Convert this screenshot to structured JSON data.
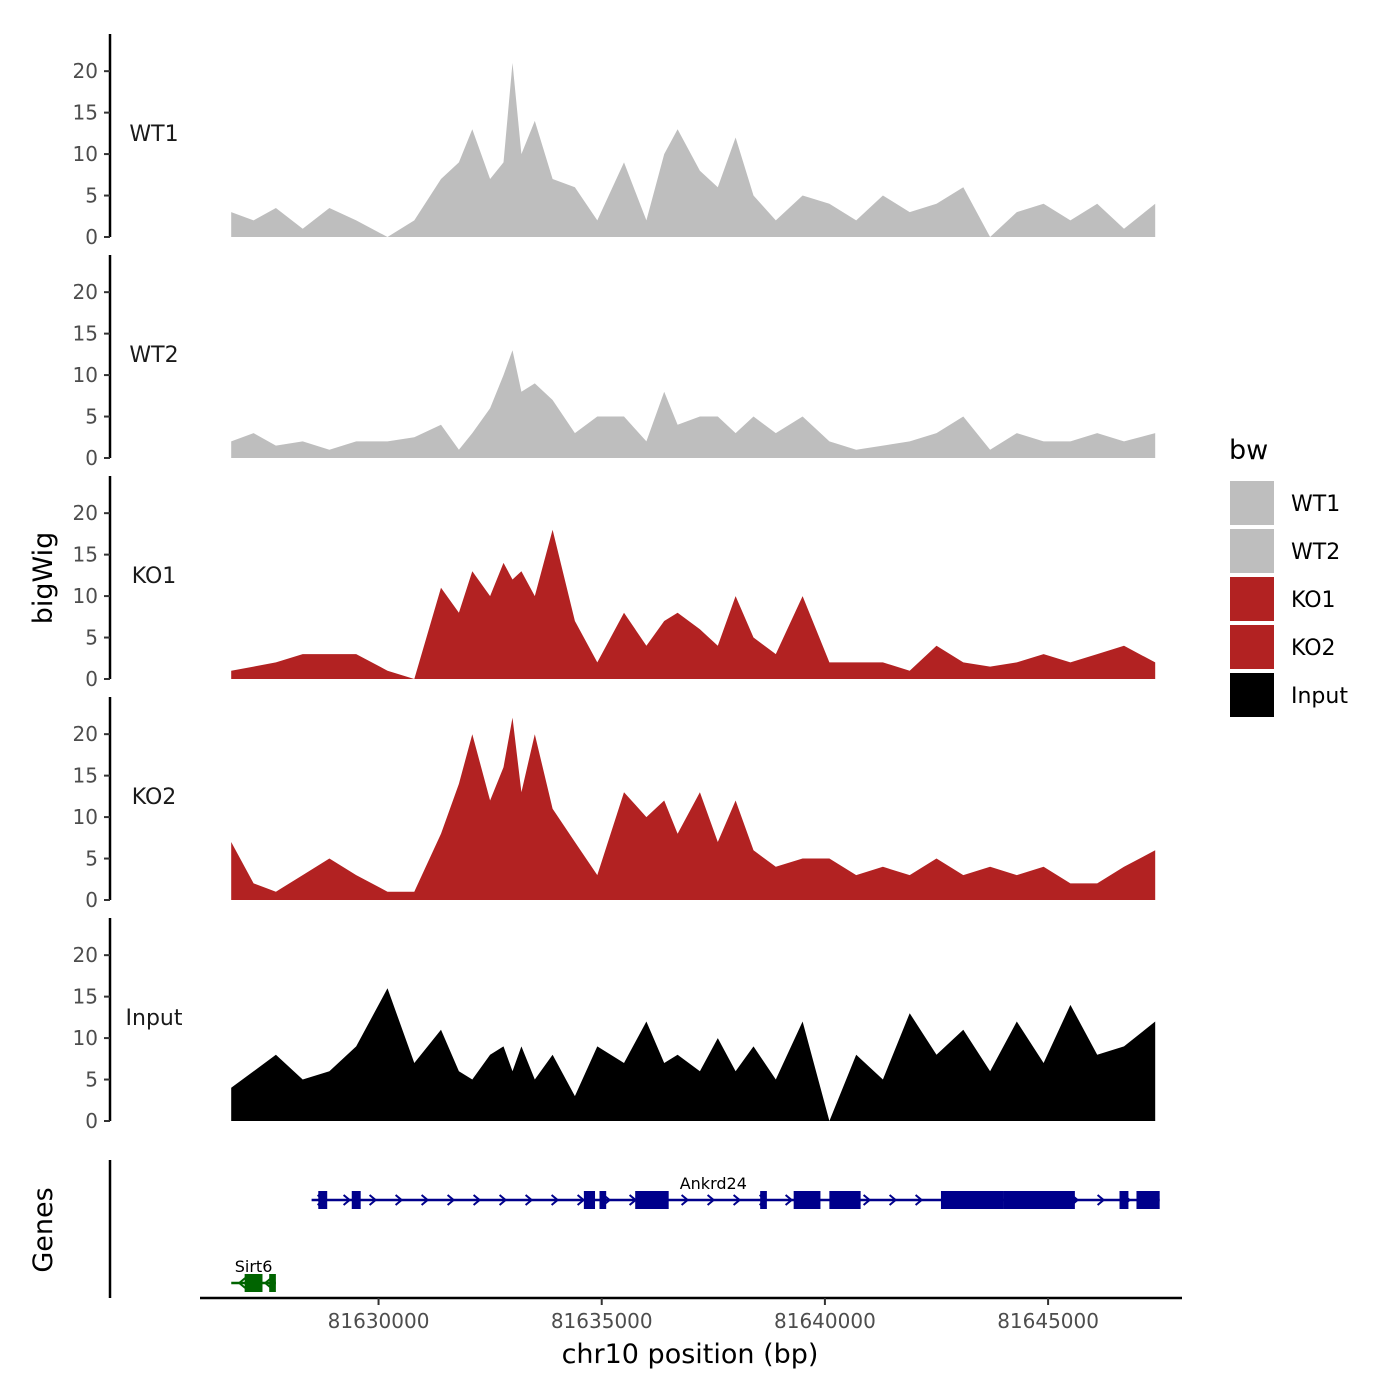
{
  "chart_data": {
    "type": "area",
    "title": "",
    "ylabel": "bigWig",
    "xlabel": "chr10 position (bp)",
    "genes_label": "Genes",
    "ylim": [
      0,
      24
    ],
    "yticks": [
      0,
      5,
      10,
      15,
      20
    ],
    "xlim": [
      81626000,
      81648000
    ],
    "xticks": [
      81630000,
      81635000,
      81640000,
      81645000
    ],
    "xtick_labels": [
      "81630000",
      "81635000",
      "81640000",
      "81645000"
    ],
    "tracks": [
      {
        "name": "WT1",
        "color": "#bebebe",
        "x": [
          81626700,
          81627200,
          81627700,
          81628300,
          81628900,
          81629500,
          81630200,
          81630800,
          81631400,
          81631800,
          81632100,
          81632500,
          81632800,
          81633000,
          81633200,
          81633500,
          81633900,
          81634400,
          81634900,
          81635500,
          81636000,
          81636400,
          81636700,
          81637200,
          81637600,
          81638000,
          81638400,
          81638900,
          81639500,
          81640100,
          81640700,
          81641300,
          81641900,
          81642500,
          81643100,
          81643700,
          81644300,
          81644900,
          81645500,
          81646100,
          81646700,
          81647400
        ],
        "values": [
          3,
          2,
          3.5,
          1,
          3.5,
          2,
          0,
          2,
          7,
          9,
          13,
          7,
          9,
          21,
          10,
          14,
          7,
          6,
          2,
          9,
          2,
          10,
          13,
          8,
          6,
          12,
          5,
          2,
          5,
          4,
          2,
          5,
          3,
          4,
          6,
          0,
          3,
          4,
          2,
          4,
          1,
          4
        ]
      },
      {
        "name": "WT2",
        "color": "#bebebe",
        "x": [
          81626700,
          81627200,
          81627700,
          81628300,
          81628900,
          81629500,
          81630200,
          81630800,
          81631400,
          81631800,
          81632100,
          81632500,
          81632800,
          81633000,
          81633200,
          81633500,
          81633900,
          81634400,
          81634900,
          81635500,
          81636000,
          81636400,
          81636700,
          81637200,
          81637600,
          81638000,
          81638400,
          81638900,
          81639500,
          81640100,
          81640700,
          81641300,
          81641900,
          81642500,
          81643100,
          81643700,
          81644300,
          81644900,
          81645500,
          81646100,
          81646700,
          81647400
        ],
        "values": [
          2,
          3,
          1.5,
          2,
          1,
          2,
          2,
          2.5,
          4,
          1,
          3,
          6,
          10,
          13,
          8,
          9,
          7,
          3,
          5,
          5,
          2,
          8,
          4,
          5,
          5,
          3,
          5,
          3,
          5,
          2,
          1,
          1.5,
          2,
          3,
          5,
          1,
          3,
          2,
          2,
          3,
          2,
          3
        ]
      },
      {
        "name": "KO1",
        "color": "#b22222",
        "x": [
          81626700,
          81627200,
          81627700,
          81628300,
          81628900,
          81629500,
          81630200,
          81630800,
          81631400,
          81631800,
          81632100,
          81632500,
          81632800,
          81633000,
          81633200,
          81633500,
          81633900,
          81634400,
          81634900,
          81635500,
          81636000,
          81636400,
          81636700,
          81637200,
          81637600,
          81638000,
          81638400,
          81638900,
          81639500,
          81640100,
          81640700,
          81641300,
          81641900,
          81642500,
          81643100,
          81643700,
          81644300,
          81644900,
          81645500,
          81646100,
          81646700,
          81647400
        ],
        "values": [
          1,
          1.5,
          2,
          3,
          3,
          3,
          1,
          0,
          11,
          8,
          13,
          10,
          14,
          12,
          13,
          10,
          18,
          7,
          2,
          8,
          4,
          7,
          8,
          6,
          4,
          10,
          5,
          3,
          10,
          2,
          2,
          2,
          1,
          4,
          2,
          1.5,
          2,
          3,
          2,
          3,
          4,
          2
        ]
      },
      {
        "name": "KO2",
        "color": "#b22222",
        "x": [
          81626700,
          81627200,
          81627700,
          81628300,
          81628900,
          81629500,
          81630200,
          81630800,
          81631400,
          81631800,
          81632100,
          81632500,
          81632800,
          81633000,
          81633200,
          81633500,
          81633900,
          81634400,
          81634900,
          81635500,
          81636000,
          81636400,
          81636700,
          81637200,
          81637600,
          81638000,
          81638400,
          81638900,
          81639500,
          81640100,
          81640700,
          81641300,
          81641900,
          81642500,
          81643100,
          81643700,
          81644300,
          81644900,
          81645500,
          81646100,
          81646700,
          81647400
        ],
        "values": [
          7,
          2,
          1,
          3,
          5,
          3,
          1,
          1,
          8,
          14,
          20,
          12,
          16,
          22,
          13,
          20,
          11,
          7,
          3,
          13,
          10,
          12,
          8,
          13,
          7,
          12,
          6,
          4,
          5,
          5,
          3,
          4,
          3,
          5,
          3,
          4,
          3,
          4,
          2,
          2,
          4,
          6
        ]
      },
      {
        "name": "Input",
        "color": "#000000",
        "x": [
          81626700,
          81627200,
          81627700,
          81628300,
          81628900,
          81629500,
          81630200,
          81630800,
          81631400,
          81631800,
          81632100,
          81632500,
          81632800,
          81633000,
          81633200,
          81633500,
          81633900,
          81634400,
          81634900,
          81635500,
          81636000,
          81636400,
          81636700,
          81637200,
          81637600,
          81638000,
          81638400,
          81638900,
          81639500,
          81640100,
          81640700,
          81641300,
          81641900,
          81642500,
          81643100,
          81643700,
          81644300,
          81644900,
          81645500,
          81646100,
          81646700,
          81647400
        ],
        "values": [
          4,
          6,
          8,
          5,
          6,
          9,
          16,
          7,
          11,
          6,
          5,
          8,
          9,
          6,
          9,
          5,
          8,
          3,
          9,
          7,
          12,
          7,
          8,
          6,
          10,
          6,
          9,
          5,
          12,
          0,
          8,
          5,
          13,
          8,
          11,
          6,
          12,
          7,
          14,
          8,
          9,
          12
        ]
      }
    ],
    "genes": [
      {
        "name": "Sirt6",
        "color": "#006400",
        "strand": "-",
        "row": 2,
        "start": 81626700,
        "end": 81627700,
        "exons": [
          [
            81627000,
            81627400
          ],
          [
            81627550,
            81627700
          ]
        ]
      },
      {
        "name": "Ankrd24",
        "color": "#00008b",
        "strand": "+",
        "row": 1,
        "start": 81628500,
        "end": 81647500,
        "exons": [
          [
            81628650,
            81628850
          ],
          [
            81629400,
            81629600
          ],
          [
            81634600,
            81634850
          ],
          [
            81634950,
            81635100
          ],
          [
            81635750,
            81636500
          ],
          [
            81638550,
            81638700
          ],
          [
            81639300,
            81639900
          ],
          [
            81640100,
            81640800
          ],
          [
            81642600,
            81644000
          ],
          [
            81644000,
            81645600
          ],
          [
            81646600,
            81646800
          ],
          [
            81646980,
            81647500
          ]
        ]
      }
    ],
    "legend": {
      "title": "bw",
      "entries": [
        {
          "label": "WT1",
          "color": "#bebebe"
        },
        {
          "label": "WT2",
          "color": "#bebebe"
        },
        {
          "label": "KO1",
          "color": "#b22222"
        },
        {
          "label": "KO2",
          "color": "#b22222"
        },
        {
          "label": "Input",
          "color": "#000000"
        }
      ]
    }
  }
}
